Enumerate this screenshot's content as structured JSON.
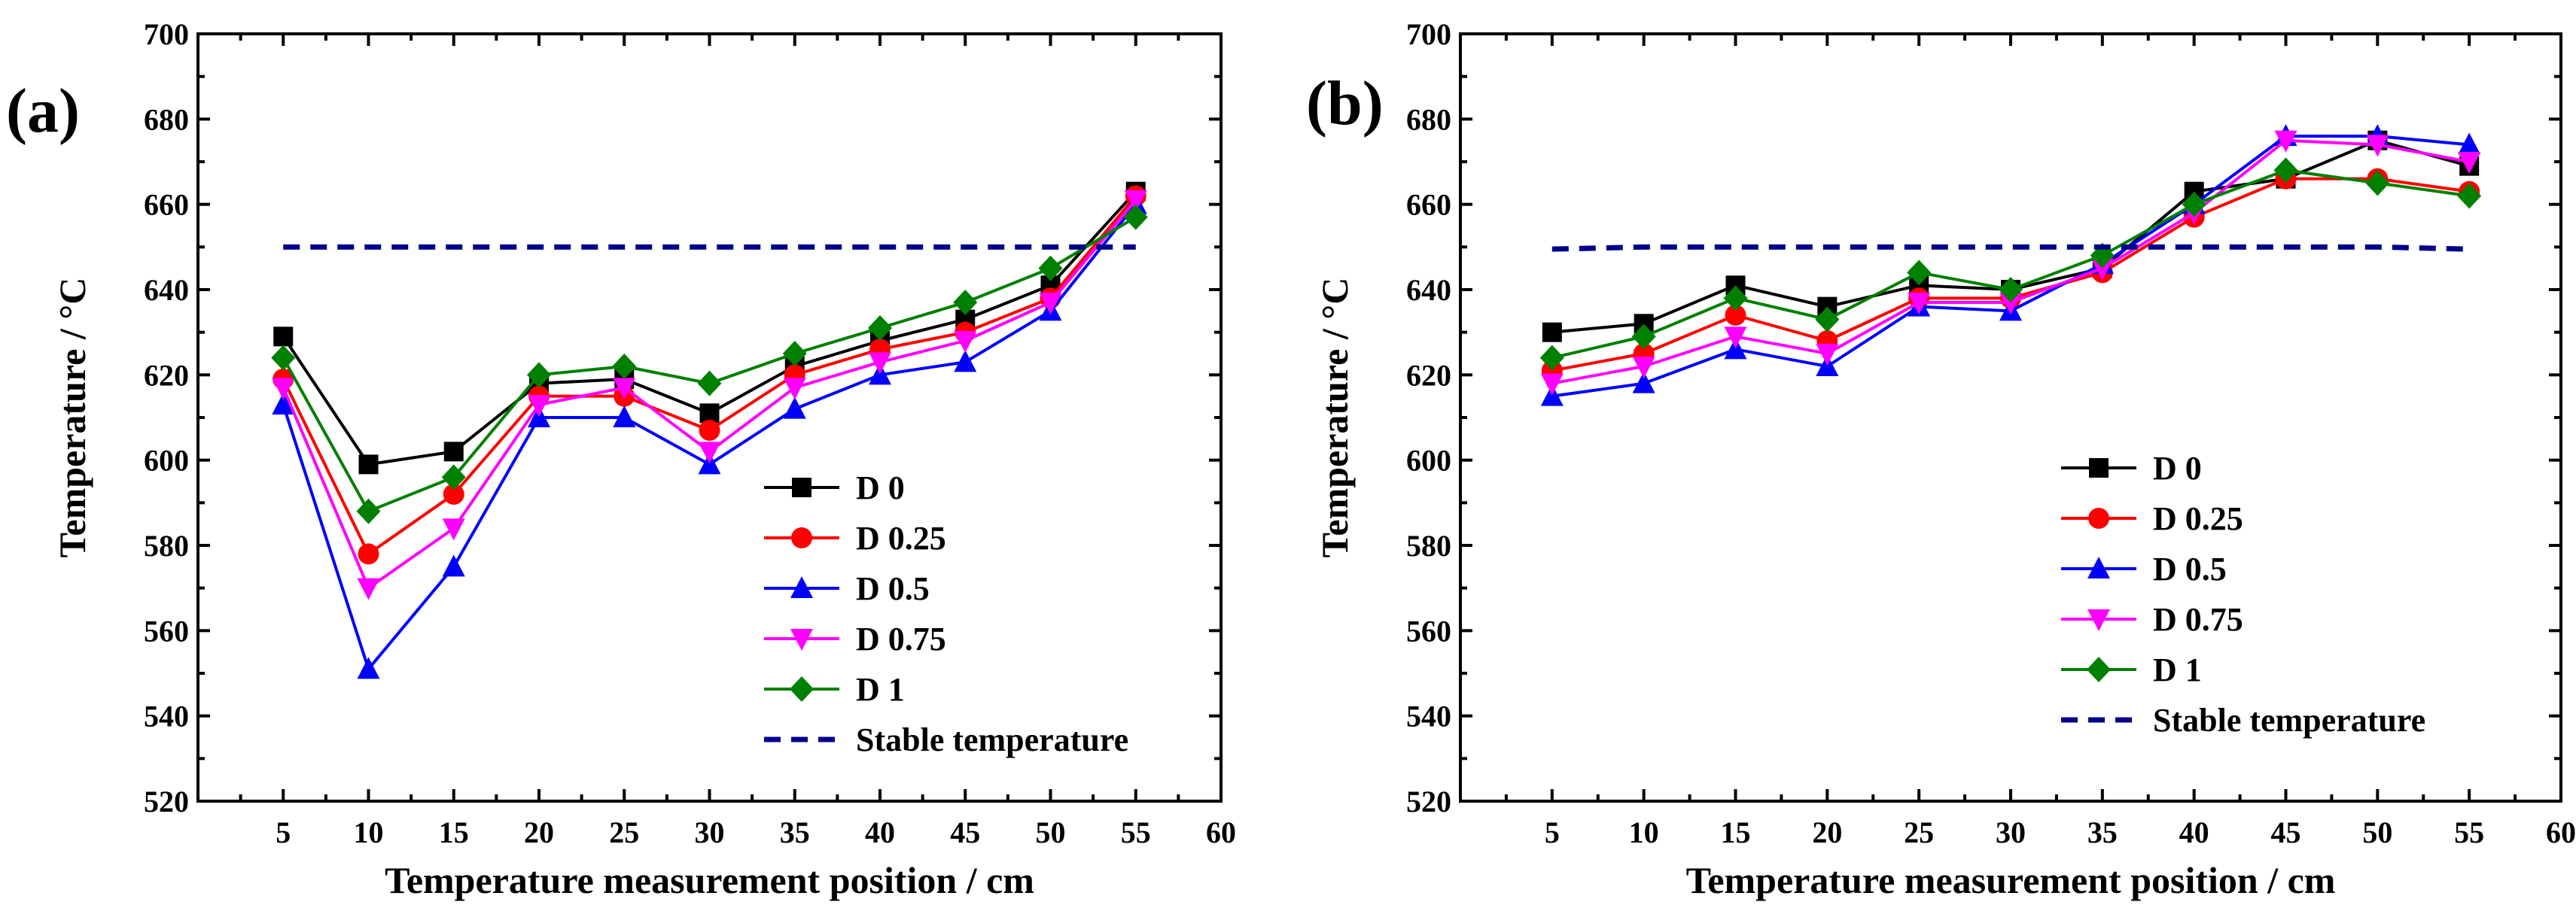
{
  "chart_data": [
    {
      "type": "line",
      "panel_label": "(a)",
      "xlabel": "Temperature measurement position / cm",
      "ylabel": "Temperature  / °C",
      "xlim": [
        0,
        60
      ],
      "ylim": [
        520,
        700
      ],
      "xticks": [
        5,
        10,
        15,
        20,
        25,
        30,
        35,
        40,
        45,
        50,
        55,
        60
      ],
      "yticks": [
        520,
        540,
        560,
        580,
        600,
        620,
        640,
        660,
        680,
        700
      ],
      "x": [
        5,
        10,
        15,
        20,
        25,
        30,
        35,
        40,
        45,
        50,
        55
      ],
      "legend_position": "lower-right",
      "series": [
        {
          "name": "D 0",
          "color": "#000000",
          "marker": "square",
          "values": [
            629,
            599,
            602,
            618,
            619,
            611,
            622,
            628,
            633,
            641,
            663
          ]
        },
        {
          "name": "D 0.25",
          "color": "#ff0000",
          "marker": "circle",
          "values": [
            619,
            578,
            592,
            615,
            615,
            607,
            620,
            626,
            630,
            638,
            662
          ]
        },
        {
          "name": "D 0.5",
          "color": "#0000ff",
          "marker": "triangle-up",
          "values": [
            613,
            551,
            575,
            610,
            610,
            599,
            612,
            620,
            623,
            635,
            660
          ]
        },
        {
          "name": "D 0.75",
          "color": "#ff00ff",
          "marker": "triangle-down",
          "values": [
            617,
            570,
            584,
            613,
            617,
            602,
            617,
            623,
            628,
            637,
            661
          ]
        },
        {
          "name": "D 1",
          "color": "#008000",
          "marker": "diamond",
          "values": [
            624,
            588,
            596,
            620,
            622,
            618,
            625,
            631,
            637,
            645,
            657
          ]
        },
        {
          "name": "Stable temperature",
          "color": "#00008b",
          "style": "dashed",
          "marker": "none",
          "values": [
            650,
            650,
            650,
            650,
            650,
            650,
            650,
            650,
            650,
            650,
            650
          ]
        }
      ]
    },
    {
      "type": "line",
      "panel_label": "(b)",
      "xlabel": "Temperature measurement position / cm",
      "ylabel": "Temperature  / °C",
      "xlim": [
        0,
        60
      ],
      "ylim": [
        520,
        700
      ],
      "xticks": [
        5,
        10,
        15,
        20,
        25,
        30,
        35,
        40,
        45,
        50,
        55,
        60
      ],
      "yticks": [
        520,
        540,
        560,
        580,
        600,
        620,
        640,
        660,
        680,
        700
      ],
      "x": [
        5,
        10,
        15,
        20,
        25,
        30,
        35,
        40,
        45,
        50,
        55
      ],
      "legend_position": "lower-right",
      "series": [
        {
          "name": "D 0",
          "color": "#000000",
          "marker": "square",
          "values": [
            630,
            632,
            641,
            636,
            641,
            640,
            645,
            663,
            666,
            675,
            669
          ]
        },
        {
          "name": "D 0.25",
          "color": "#ff0000",
          "marker": "circle",
          "values": [
            621,
            625,
            634,
            628,
            638,
            638,
            644,
            657,
            666,
            666,
            663
          ]
        },
        {
          "name": "D 0.5",
          "color": "#0000ff",
          "marker": "triangle-up",
          "values": [
            615,
            618,
            626,
            622,
            636,
            635,
            646,
            660,
            676,
            676,
            674
          ]
        },
        {
          "name": "D 0.75",
          "color": "#ff00ff",
          "marker": "triangle-down",
          "values": [
            618,
            622,
            629,
            625,
            637,
            637,
            645,
            658,
            675,
            674,
            670
          ]
        },
        {
          "name": "D 1",
          "color": "#008000",
          "marker": "diamond",
          "values": [
            624,
            629,
            638,
            633,
            644,
            640,
            648,
            660,
            668,
            665,
            662
          ]
        },
        {
          "name": "Stable temperature",
          "color": "#00008b",
          "style": "dashed",
          "marker": "none",
          "values": [
            649.5,
            650,
            650,
            650,
            650,
            650,
            650,
            650,
            650,
            650,
            649.5
          ]
        }
      ]
    }
  ]
}
